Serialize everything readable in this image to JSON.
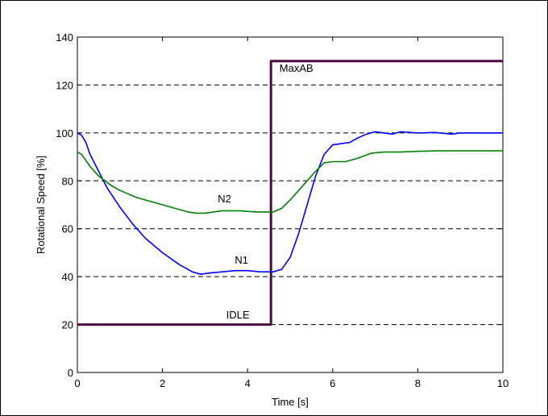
{
  "chart_data": {
    "type": "line",
    "title": "",
    "xlabel": "Time [s]",
    "ylabel": "Rotational Speed [%]",
    "xlim": [
      0,
      10
    ],
    "ylim": [
      0,
      140
    ],
    "xticks": [
      0,
      2,
      4,
      6,
      8,
      10
    ],
    "yticks": [
      0,
      20,
      40,
      60,
      80,
      100,
      120,
      140
    ],
    "grid": "horizontal dashed",
    "colors": {
      "throttle": "#4b0c3f",
      "N1": "#0000ff",
      "N2": "#008000"
    },
    "series": [
      {
        "key": "throttle",
        "x": [
          0,
          4.55,
          4.55,
          10
        ],
        "y": [
          20,
          20,
          130,
          130
        ]
      },
      {
        "key": "N1",
        "x": [
          0,
          0.1,
          0.2,
          0.3,
          0.5,
          0.7,
          1.0,
          1.3,
          1.6,
          2.0,
          2.4,
          2.7,
          2.9,
          3.1,
          3.4,
          3.7,
          4.0,
          4.3,
          4.6,
          4.8,
          5.0,
          5.2,
          5.4,
          5.6,
          5.8,
          6.0,
          6.2,
          6.4,
          6.6,
          6.8,
          7.0,
          7.2,
          7.4,
          7.6,
          8.0,
          8.4,
          8.8,
          9.0,
          9.4,
          10
        ],
        "y": [
          100,
          99,
          96,
          91,
          84,
          77,
          69,
          62,
          56,
          50,
          45,
          42,
          41,
          41.5,
          42,
          42.5,
          42.5,
          42,
          42,
          43,
          48,
          58,
          70,
          82,
          91,
          95,
          95.5,
          96,
          98,
          99.5,
          100.5,
          100,
          99.5,
          100.5,
          100,
          100.2,
          99.5,
          100,
          100,
          100
        ]
      },
      {
        "key": "N2",
        "x": [
          0,
          0.1,
          0.3,
          0.5,
          0.8,
          1.0,
          1.4,
          1.8,
          2.2,
          2.6,
          2.8,
          3.0,
          3.4,
          3.8,
          4.2,
          4.6,
          4.8,
          5.0,
          5.2,
          5.4,
          5.6,
          5.8,
          6.0,
          6.3,
          6.6,
          6.9,
          7.2,
          7.6,
          8.0,
          8.5,
          9.0,
          9.5,
          10
        ],
        "y": [
          92,
          91,
          86,
          82,
          78,
          76,
          73,
          71,
          69,
          67,
          66.5,
          66.5,
          67.5,
          67.5,
          67,
          67,
          68.5,
          72,
          76,
          80,
          84,
          87.5,
          88,
          88,
          89.5,
          91.5,
          92,
          92,
          92.3,
          92.5,
          92.5,
          92.5,
          92.5
        ]
      }
    ],
    "annotations": [
      {
        "text": "MaxAB",
        "x": 4.75,
        "y": 125.5
      },
      {
        "text": "N2",
        "x": 3.3,
        "y": 71
      },
      {
        "text": "N1",
        "x": 3.7,
        "y": 45.5
      },
      {
        "text": "IDLE",
        "x": 3.5,
        "y": 22.5
      }
    ]
  }
}
